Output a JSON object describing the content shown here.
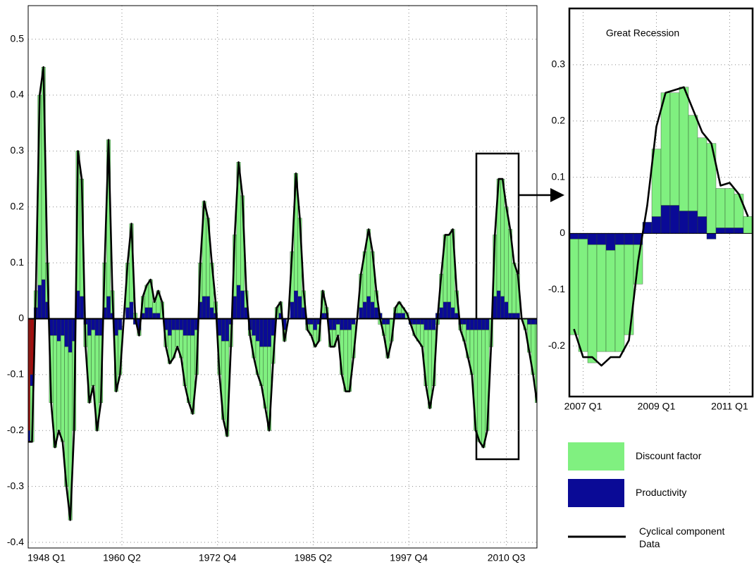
{
  "chart_data": [
    {
      "type": "bar",
      "stacked": true,
      "legend": "outside-right",
      "grid": true,
      "x": [
        1948,
        1948.5,
        1949,
        1949.5,
        1950,
        1950.5,
        1951,
        1951.5,
        1952,
        1952.5,
        1953,
        1953.5,
        1954,
        1954.5,
        1955,
        1955.5,
        1956,
        1956.5,
        1957,
        1957.5,
        1958,
        1958.5,
        1959,
        1959.5,
        1960,
        1960.5,
        1961,
        1961.5,
        1962,
        1962.5,
        1963,
        1963.5,
        1964,
        1964.5,
        1965,
        1965.5,
        1966,
        1966.5,
        1967,
        1967.5,
        1968,
        1968.5,
        1969,
        1969.5,
        1970,
        1970.5,
        1971,
        1971.5,
        1972,
        1972.5,
        1973,
        1973.5,
        1974,
        1974.5,
        1975,
        1975.5,
        1976,
        1976.5,
        1977,
        1977.5,
        1978,
        1978.5,
        1979,
        1979.5,
        1980,
        1980.5,
        1981,
        1981.5,
        1982,
        1982.5,
        1983,
        1983.5,
        1984,
        1984.5,
        1985,
        1985.5,
        1986,
        1986.5,
        1987,
        1987.5,
        1988,
        1988.5,
        1989,
        1989.5,
        1990,
        1990.5,
        1991,
        1991.5,
        1992,
        1992.5,
        1993,
        1993.5,
        1994,
        1994.5,
        1995,
        1995.5,
        1996,
        1996.5,
        1997,
        1997.5,
        1998,
        1998.5,
        1999,
        1999.5,
        2000,
        2000.5,
        2001,
        2001.5,
        2002,
        2002.5,
        2003,
        2003.5,
        2004,
        2004.5,
        2005,
        2005.5,
        2006,
        2006.5,
        2007,
        2007.5,
        2008,
        2008.5,
        2009,
        2009.5,
        2010,
        2010.5,
        2011,
        2011.5,
        2012,
        2012.5,
        2013,
        2013.5,
        2014,
        2014.5
      ],
      "xlim": [
        1948,
        2014.5
      ],
      "xticks": [
        {
          "value": 1948,
          "label": "1948 Q1"
        },
        {
          "value": 1960.25,
          "label": "1960 Q2"
        },
        {
          "value": 1972.75,
          "label": "1972 Q4"
        },
        {
          "value": 1985.25,
          "label": "1985 Q2"
        },
        {
          "value": 1997.75,
          "label": "1997 Q4"
        },
        {
          "value": 2010.5,
          "label": "2010 Q3"
        }
      ],
      "ylim": [
        -0.41,
        0.56
      ],
      "yticks": [
        -0.4,
        -0.3,
        -0.2,
        -0.1,
        0,
        0.1,
        0.2,
        0.3,
        0.4,
        0.5
      ],
      "series": [
        {
          "name": "Discount factor",
          "color": "#80f080",
          "values": [
            0,
            -0.1,
            0.03,
            0.34,
            0.38,
            0.07,
            -0.12,
            -0.2,
            -0.16,
            -0.19,
            -0.25,
            -0.3,
            -0.16,
            0.25,
            0.21,
            -0.04,
            -0.12,
            -0.1,
            -0.17,
            -0.12,
            0.08,
            0.28,
            0.04,
            -0.1,
            -0.08,
            0,
            0.08,
            0.14,
            0.01,
            -0.01,
            0.03,
            0.04,
            0.05,
            0.02,
            0.04,
            0.03,
            -0.03,
            -0.05,
            -0.05,
            -0.03,
            -0.05,
            -0.09,
            -0.12,
            -0.14,
            -0.08,
            0.07,
            0.17,
            0.14,
            0.08,
            0.02,
            -0.07,
            -0.14,
            -0.17,
            -0.04,
            0.11,
            0.22,
            0.17,
            0.03,
            -0.01,
            -0.04,
            -0.06,
            -0.07,
            -0.11,
            -0.15,
            -0.05,
            0.02,
            0.02,
            -0.02,
            0,
            0.09,
            0.21,
            0.14,
            0.03,
            -0.01,
            -0.02,
            -0.03,
            -0.03,
            0.04,
            0.01,
            -0.03,
            -0.03,
            -0.02,
            -0.08,
            -0.11,
            -0.11,
            -0.06,
            0,
            0.06,
            0.09,
            0.12,
            0.09,
            0.03,
            -0.01,
            -0.02,
            -0.06,
            -0.04,
            0.01,
            0.02,
            0.01,
            0.01,
            0,
            -0.02,
            -0.03,
            -0.04,
            -0.1,
            -0.14,
            -0.1,
            -0.01,
            0.06,
            0.12,
            0.12,
            0.14,
            0.04,
            -0.01,
            -0.03,
            -0.05,
            -0.08,
            -0.18,
            -0.2,
            -0.21,
            -0.18,
            -0.05,
            0.11,
            0.2,
            0.21,
            0.17,
            0.15,
            0.09,
            0.07,
            0,
            -0.02,
            -0.05,
            -0.09,
            -0.14
          ]
        },
        {
          "name": "Productivity",
          "color": "#0a0a96",
          "values": [
            -0.02,
            -0.02,
            0.02,
            0.06,
            0.07,
            0.03,
            -0.03,
            -0.03,
            -0.04,
            -0.03,
            -0.05,
            -0.06,
            -0.04,
            0.05,
            0.04,
            -0.01,
            -0.03,
            -0.02,
            -0.03,
            -0.03,
            0.02,
            0.04,
            0.01,
            -0.03,
            -0.02,
            0,
            0.02,
            0.03,
            -0.01,
            -0.02,
            0.01,
            0.02,
            0.02,
            0.01,
            0.01,
            0,
            -0.02,
            -0.03,
            -0.02,
            -0.02,
            -0.02,
            -0.03,
            -0.03,
            -0.03,
            -0.02,
            0.03,
            0.04,
            0.04,
            0.02,
            0.01,
            -0.03,
            -0.04,
            -0.04,
            -0.01,
            0.04,
            0.06,
            0.05,
            0.02,
            -0.02,
            -0.03,
            -0.04,
            -0.05,
            -0.05,
            -0.05,
            -0.03,
            0,
            0.01,
            -0.02,
            0,
            0.03,
            0.05,
            0.04,
            0.02,
            -0.01,
            -0.01,
            -0.02,
            -0.01,
            0.01,
            0.01,
            -0.02,
            -0.02,
            -0.01,
            -0.02,
            -0.02,
            -0.02,
            -0.01,
            0,
            0.02,
            0.03,
            0.04,
            0.03,
            0.02,
            0.01,
            -0.01,
            -0.01,
            0,
            0.01,
            0.01,
            0.01,
            0,
            -0.01,
            -0.01,
            -0.01,
            -0.01,
            -0.02,
            -0.02,
            -0.02,
            0.01,
            0.02,
            0.03,
            0.03,
            0.02,
            0.01,
            -0.01,
            -0.01,
            -0.02,
            -0.02,
            -0.02,
            -0.02,
            -0.02,
            -0.02,
            0,
            0.04,
            0.05,
            0.04,
            0.03,
            0.01,
            0.01,
            0.01,
            0,
            0,
            -0.01,
            -0.01,
            -0.01
          ]
        },
        {
          "color": "#a01010",
          "values": [
            -0.2,
            -0.1,
            null,
            null,
            null,
            null,
            null,
            null,
            null,
            null,
            null,
            null,
            null,
            null,
            null,
            null,
            null,
            null,
            null,
            null,
            null,
            null,
            null,
            null,
            null,
            null,
            null,
            null,
            null,
            null,
            null,
            null,
            null,
            null,
            null,
            null,
            null,
            null,
            null,
            null,
            null,
            null,
            null,
            null,
            null,
            null,
            null,
            null,
            null,
            null,
            null,
            null,
            null,
            null,
            null,
            null,
            null,
            null,
            null,
            null,
            null,
            null,
            null,
            null,
            null,
            null,
            null,
            null,
            null,
            null,
            null,
            null,
            null,
            null,
            null,
            null,
            null,
            null,
            null,
            null,
            null,
            null,
            null,
            null,
            null,
            null,
            null,
            null,
            null,
            null,
            null,
            null,
            null,
            null,
            null,
            null,
            null,
            null,
            null,
            null,
            null,
            null,
            null,
            null,
            null,
            null,
            null,
            null,
            null,
            null,
            null,
            null,
            null,
            null,
            null,
            null,
            null,
            null,
            null,
            null,
            null,
            null,
            null,
            null,
            null,
            null,
            null,
            null,
            null,
            null,
            null,
            null,
            null,
            null
          ]
        },
        {
          "name": "Cyclical component Data",
          "type": "line",
          "color": "#000000",
          "values": [
            -0.22,
            -0.22,
            0.05,
            0.4,
            0.45,
            0.1,
            -0.15,
            -0.23,
            -0.2,
            -0.22,
            -0.3,
            -0.36,
            -0.2,
            0.3,
            0.25,
            -0.05,
            -0.15,
            -0.12,
            -0.2,
            -0.15,
            0.1,
            0.32,
            0.05,
            -0.13,
            -0.1,
            0,
            0.1,
            0.17,
            0,
            -0.03,
            0.04,
            0.06,
            0.07,
            0.03,
            0.05,
            0.03,
            -0.05,
            -0.08,
            -0.07,
            -0.05,
            -0.07,
            -0.12,
            -0.15,
            -0.17,
            -0.1,
            0.1,
            0.21,
            0.18,
            0.1,
            0.03,
            -0.1,
            -0.18,
            -0.21,
            -0.05,
            0.15,
            0.28,
            0.22,
            0.05,
            -0.03,
            -0.07,
            -0.1,
            -0.12,
            -0.16,
            -0.2,
            -0.08,
            0.02,
            0.03,
            -0.04,
            0,
            0.12,
            0.26,
            0.18,
            0.05,
            -0.02,
            -0.03,
            -0.05,
            -0.04,
            0.05,
            0.02,
            -0.05,
            -0.05,
            -0.03,
            -0.1,
            -0.13,
            -0.13,
            -0.07,
            0,
            0.08,
            0.12,
            0.16,
            0.12,
            0.05,
            0,
            -0.03,
            -0.07,
            -0.04,
            0.02,
            0.03,
            0.02,
            0.01,
            -0.01,
            -0.03,
            -0.04,
            -0.05,
            -0.12,
            -0.16,
            -0.12,
            0,
            0.08,
            0.15,
            0.15,
            0.16,
            0.05,
            -0.02,
            -0.04,
            -0.07,
            -0.1,
            -0.2,
            -0.22,
            -0.23,
            -0.2,
            -0.05,
            0.15,
            0.25,
            0.25,
            0.2,
            0.16,
            0.1,
            0.08,
            0,
            -0.02,
            -0.06,
            -0.1,
            -0.15
          ]
        }
      ]
    },
    {
      "type": "bar",
      "stacked": true,
      "grid": true,
      "title": "Great Recession",
      "categories": [
        null,
        "2007 Q1",
        null,
        null,
        null,
        null,
        null,
        null,
        null,
        "2009 Q1",
        null,
        null,
        null,
        null,
        null,
        null,
        null,
        "2011 Q1",
        null,
        null
      ],
      "ylim": [
        -0.29,
        0.4
      ],
      "yticks": [
        -0.2,
        -0.1,
        0,
        0.1,
        0.2,
        0.3
      ],
      "series": [
        {
          "color": "#80f080",
          "values": [
            -0.17,
            -0.2,
            -0.21,
            -0.19,
            -0.18,
            -0.19,
            -0.16,
            -0.07,
            0,
            0.12,
            0.2,
            0.2,
            0.22,
            0.17,
            0.14,
            0.16,
            0.07,
            0.07,
            0.06,
            0.03
          ]
        },
        {
          "color": "#0a0a96",
          "values": [
            -0.01,
            -0.01,
            -0.02,
            -0.02,
            -0.03,
            -0.02,
            -0.02,
            -0.02,
            0.02,
            0.03,
            0.05,
            0.05,
            0.04,
            0.04,
            0.03,
            -0.01,
            0.01,
            0.01,
            0.01,
            0
          ]
        },
        {
          "type": "line",
          "color": "#000000",
          "values": [
            -0.17,
            -0.22,
            -0.22,
            -0.235,
            -0.22,
            -0.22,
            -0.19,
            -0.05,
            0.05,
            0.19,
            0.25,
            0.255,
            0.26,
            0.22,
            0.18,
            0.16,
            0.085,
            0.09,
            0.07,
            0.03
          ]
        }
      ]
    }
  ]
}
